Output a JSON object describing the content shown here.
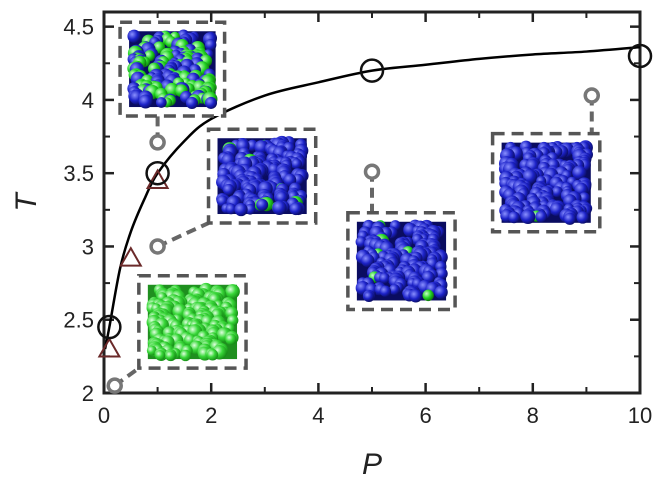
{
  "chart_data": {
    "type": "scatter",
    "xlabel": "P",
    "ylabel": "T",
    "xlim": [
      0,
      10
    ],
    "ylim": [
      2,
      4.6
    ],
    "x_ticks": [
      "0",
      "2",
      "4",
      "6",
      "8",
      "10"
    ],
    "y_ticks": [
      "2",
      "2.5",
      "3",
      "3.5",
      "4",
      "4.5"
    ],
    "grid": false,
    "series": [
      {
        "marker": "large-open-circle",
        "color": "#111111",
        "points": [
          [
            0.1,
            2.45
          ],
          [
            1.0,
            3.5
          ],
          [
            5.0,
            4.2
          ],
          [
            10.0,
            4.3
          ]
        ]
      },
      {
        "marker": "open-triangle",
        "color": "#6b2a2a",
        "points": [
          [
            0.1,
            2.3
          ],
          [
            0.5,
            2.92
          ],
          [
            1.0,
            3.45
          ]
        ]
      },
      {
        "marker": "small-open-circle",
        "color": "#777777",
        "points": [
          [
            0.2,
            2.05
          ],
          [
            1.0,
            3.0
          ],
          [
            1.0,
            3.71
          ],
          [
            5.0,
            3.51
          ],
          [
            9.1,
            4.03
          ]
        ]
      }
    ],
    "fit_curve": {
      "style": "solid",
      "color": "#000000",
      "points": [
        [
          0.02,
          2.3
        ],
        [
          0.1,
          2.45
        ],
        [
          0.3,
          2.85
        ],
        [
          0.5,
          3.1
        ],
        [
          0.75,
          3.32
        ],
        [
          1.0,
          3.5
        ],
        [
          1.5,
          3.72
        ],
        [
          2.0,
          3.87
        ],
        [
          3.0,
          4.03
        ],
        [
          4.0,
          4.12
        ],
        [
          5.0,
          4.2
        ],
        [
          6.0,
          4.24
        ],
        [
          7.0,
          4.28
        ],
        [
          8.0,
          4.31
        ],
        [
          9.0,
          4.33
        ],
        [
          10.0,
          4.36
        ]
      ]
    },
    "insets": [
      {
        "name": "mixed-blue-green",
        "dominant_color": "#1c22c8",
        "secondary_color": "#22d422",
        "green_fraction": 0.45,
        "attach_point": [
          1.0,
          3.71
        ],
        "box_x": [
          0.3,
          2.25
        ],
        "box_y": [
          3.89,
          4.53
        ]
      },
      {
        "name": "blue-few-green-a",
        "dominant_color": "#1c22c8",
        "secondary_color": "#22d422",
        "green_fraction": 0.04,
        "attach_point": [
          1.0,
          3.0
        ],
        "box_x": [
          1.95,
          3.95
        ],
        "box_y": [
          3.16,
          3.8
        ]
      },
      {
        "name": "green-only",
        "dominant_color": "#2fd42f",
        "secondary_color": "#1fa81f",
        "green_fraction": 1.0,
        "attach_point": [
          0.2,
          2.05
        ],
        "box_x": [
          0.65,
          2.65
        ],
        "box_y": [
          2.17,
          2.8
        ]
      },
      {
        "name": "blue-few-green-b",
        "dominant_color": "#1c22c8",
        "secondary_color": "#22d422",
        "green_fraction": 0.03,
        "attach_point": [
          5.0,
          3.51
        ],
        "box_x": [
          4.55,
          6.55
        ],
        "box_y": [
          2.57,
          3.23
        ]
      },
      {
        "name": "blue-few-green-c",
        "dominant_color": "#1c22c8",
        "secondary_color": "#22d422",
        "green_fraction": 0.03,
        "attach_point": [
          9.1,
          4.03
        ],
        "box_x": [
          7.25,
          9.25
        ],
        "box_y": [
          3.1,
          3.77
        ]
      }
    ]
  }
}
